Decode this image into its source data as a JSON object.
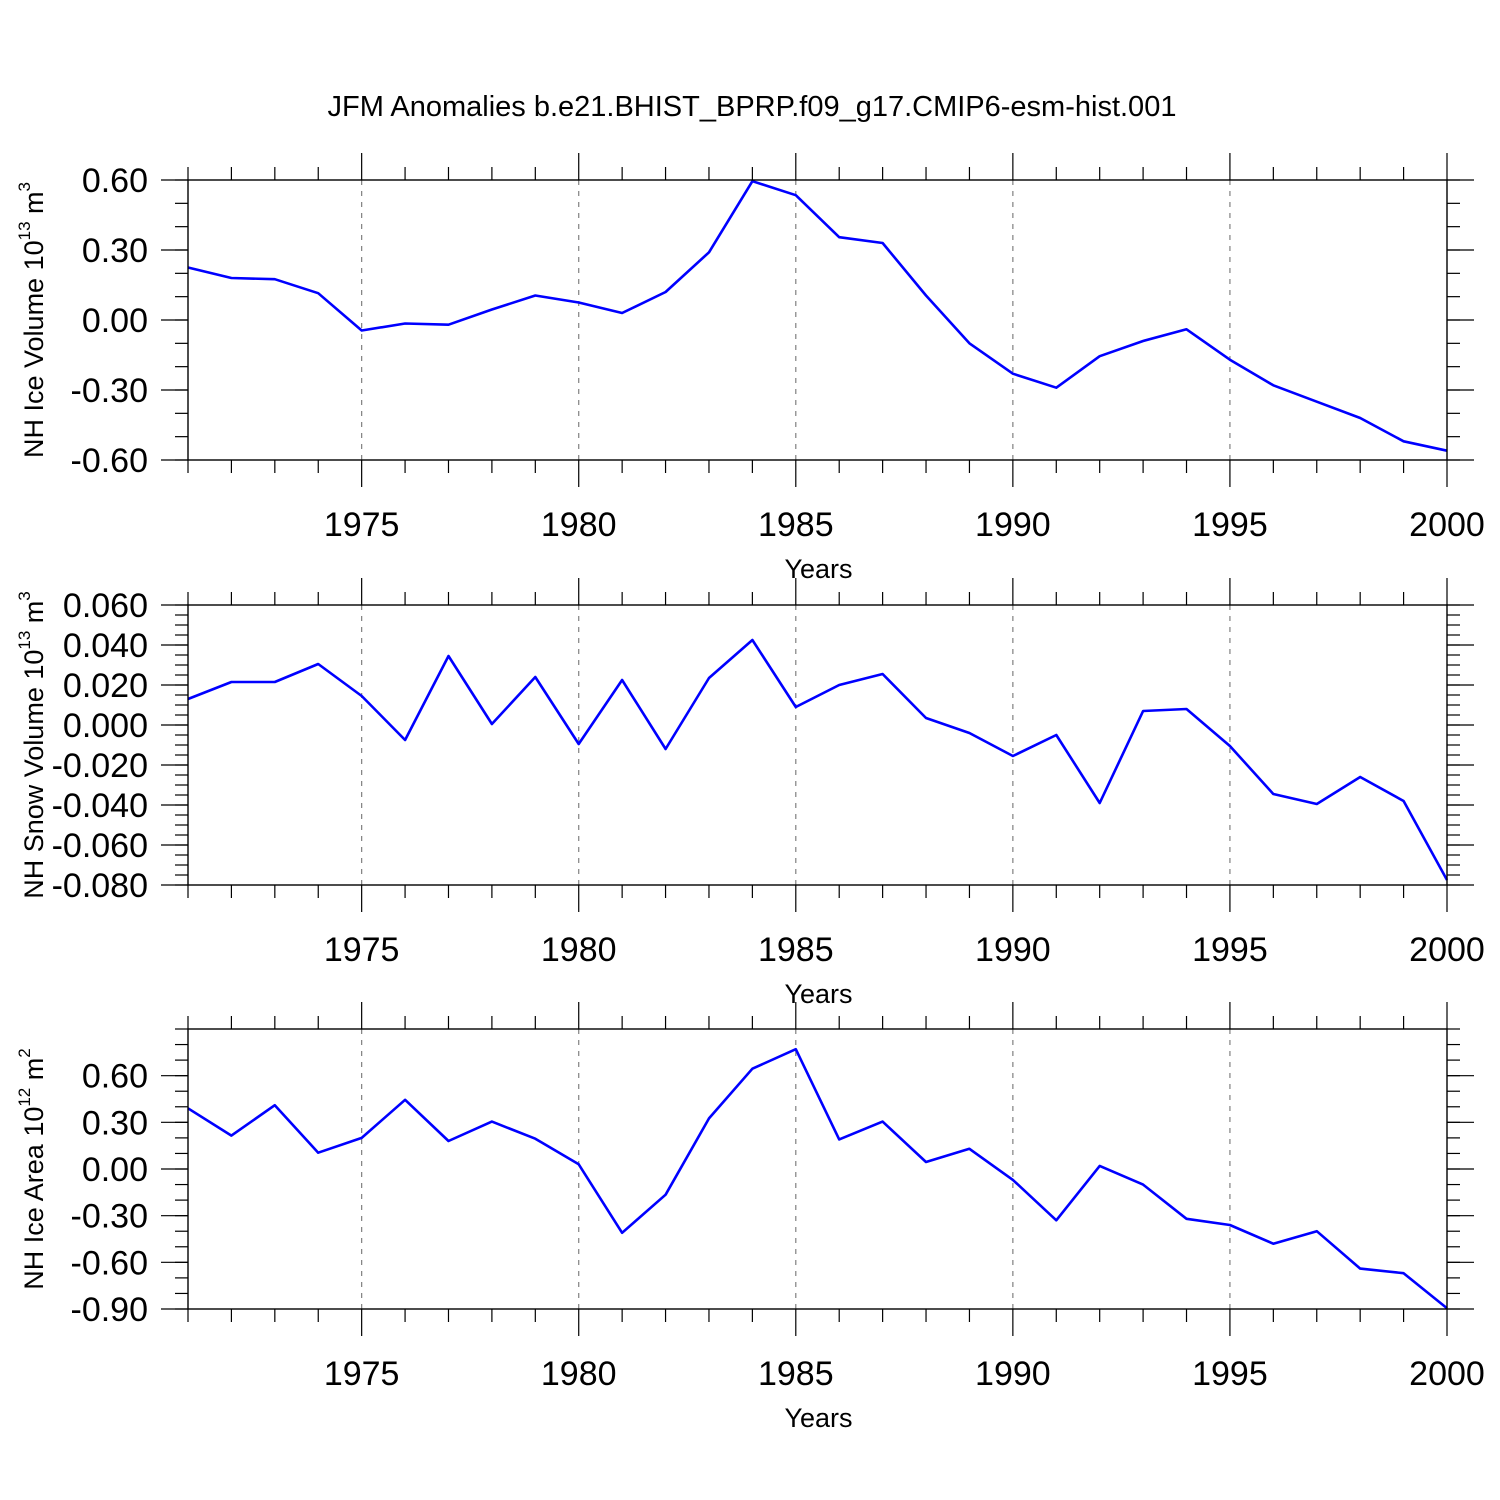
{
  "title": "JFM Anomalies b.e21.BHIST_BPRP.f09_g17.CMIP6-esm-hist.001",
  "line_color": "#0000ff",
  "grid_color": "#808080",
  "chart_data": [
    {
      "type": "line",
      "xlabel": "Years",
      "ylabel": {
        "text": "NH Ice Volume 10",
        "sup": "13",
        "unit": " m",
        "unit_sup": "3"
      },
      "xlim": [
        1971,
        2000
      ],
      "ylim": [
        -0.6,
        0.6
      ],
      "xticks": [
        1975,
        1980,
        1985,
        1990,
        1995,
        2000
      ],
      "xtick_labels": [
        "1975",
        "1980",
        "1985",
        "1990",
        "1995",
        "2000"
      ],
      "yticks": [
        -0.6,
        -0.3,
        0.0,
        0.3,
        0.6
      ],
      "ytick_labels": [
        "-0.60",
        "-0.30",
        "0.00",
        "0.30",
        "0.60"
      ],
      "y_minor_step": 0.1,
      "grid": "vertical-dashed",
      "x": [
        1971,
        1972,
        1973,
        1974,
        1975,
        1976,
        1977,
        1978,
        1979,
        1980,
        1981,
        1982,
        1983,
        1984,
        1985,
        1986,
        1987,
        1988,
        1989,
        1990,
        1991,
        1992,
        1993,
        1994,
        1995,
        1996,
        1997,
        1998,
        1999,
        2000
      ],
      "values": [
        0.225,
        0.18,
        0.175,
        0.115,
        -0.045,
        -0.015,
        -0.02,
        0.045,
        0.105,
        0.075,
        0.03,
        0.12,
        0.29,
        0.595,
        0.535,
        0.355,
        0.33,
        0.105,
        -0.1,
        -0.23,
        -0.29,
        -0.155,
        -0.09,
        -0.04,
        -0.17,
        -0.28,
        -0.35,
        -0.42,
        -0.52,
        -0.56
      ]
    },
    {
      "type": "line",
      "xlabel": "Years",
      "ylabel": {
        "text": "NH Snow Volume 10",
        "sup": "13",
        "unit": " m",
        "unit_sup": "3"
      },
      "xlim": [
        1971,
        2000
      ],
      "ylim": [
        -0.08,
        0.06
      ],
      "xticks": [
        1975,
        1980,
        1985,
        1990,
        1995,
        2000
      ],
      "xtick_labels": [
        "1975",
        "1980",
        "1985",
        "1990",
        "1995",
        "2000"
      ],
      "yticks": [
        -0.08,
        -0.06,
        -0.04,
        -0.02,
        0.0,
        0.02,
        0.04,
        0.06
      ],
      "ytick_labels": [
        "-0.080",
        "-0.060",
        "-0.040",
        "-0.020",
        "0.000",
        "0.020",
        "0.040",
        "0.060"
      ],
      "y_minor_step": 0.005,
      "grid": "vertical-dashed",
      "x": [
        1971,
        1972,
        1973,
        1974,
        1975,
        1976,
        1977,
        1978,
        1979,
        1980,
        1981,
        1982,
        1983,
        1984,
        1985,
        1986,
        1987,
        1988,
        1989,
        1990,
        1991,
        1992,
        1993,
        1994,
        1995,
        1996,
        1997,
        1998,
        1999,
        2000
      ],
      "values": [
        0.013,
        0.0215,
        0.0215,
        0.0305,
        0.0145,
        -0.0075,
        0.0345,
        0.0005,
        0.024,
        -0.0095,
        0.0225,
        -0.012,
        0.0235,
        0.0425,
        0.009,
        0.02,
        0.0255,
        0.0035,
        -0.004,
        -0.0155,
        -0.005,
        -0.039,
        0.007,
        0.008,
        -0.0105,
        -0.0345,
        -0.0395,
        -0.026,
        -0.038,
        -0.0775
      ]
    },
    {
      "type": "line",
      "xlabel": "Years",
      "ylabel": {
        "text": "NH Ice Area 10",
        "sup": "12",
        "unit": " m",
        "unit_sup": "2"
      },
      "xlim": [
        1971,
        2000
      ],
      "ylim": [
        -0.9,
        0.9
      ],
      "xticks": [
        1975,
        1980,
        1985,
        1990,
        1995,
        2000
      ],
      "xtick_labels": [
        "1975",
        "1980",
        "1985",
        "1990",
        "1995",
        "2000"
      ],
      "yticks": [
        -0.9,
        -0.6,
        -0.3,
        0.0,
        0.3,
        0.6
      ],
      "ytick_labels": [
        "-0.90",
        "-0.60",
        "-0.30",
        "0.00",
        "0.30",
        "0.60"
      ],
      "y_minor_step": 0.1,
      "grid": "vertical-dashed",
      "x": [
        1971,
        1972,
        1973,
        1974,
        1975,
        1976,
        1977,
        1978,
        1979,
        1980,
        1981,
        1982,
        1983,
        1984,
        1985,
        1986,
        1987,
        1988,
        1989,
        1990,
        1991,
        1992,
        1993,
        1994,
        1995,
        1996,
        1997,
        1998,
        1999,
        2000
      ],
      "values": [
        0.39,
        0.215,
        0.41,
        0.105,
        0.2,
        0.445,
        0.18,
        0.305,
        0.195,
        0.03,
        -0.41,
        -0.165,
        0.325,
        0.645,
        0.77,
        0.19,
        0.305,
        0.045,
        0.13,
        -0.07,
        -0.33,
        0.02,
        -0.1,
        -0.32,
        -0.36,
        -0.48,
        -0.4,
        -0.64,
        -0.67,
        -0.895
      ]
    }
  ]
}
